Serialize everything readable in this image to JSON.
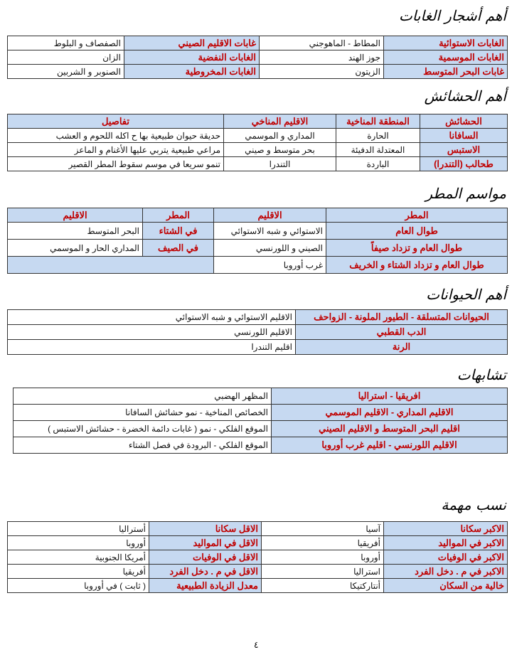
{
  "forests": {
    "title": "أهم أشجار الغابات",
    "rows": [
      [
        "الغابات الاستوائية",
        "المطاط - الماهوجني",
        "غابات الاقليم الصيني",
        "الصفصاف و البلوط"
      ],
      [
        "الغابات الموسمية",
        "جوز الهند",
        "الغابات النفضية",
        "الزان"
      ],
      [
        "غابات البحر المتوسط",
        "الزيتون",
        "الغابات المخروطية",
        "الصنوبر و الشربين"
      ]
    ]
  },
  "grasses": {
    "title": "أهم الحشائش",
    "header": [
      "الحشائش",
      "المنطقة المناخية",
      "الاقليم المناخي",
      "تفاصيل"
    ],
    "rows": [
      [
        "السافانا",
        "الحارة",
        "المداري و الموسمي",
        "حديقة حيوان طبيعية بها ح اكله اللحوم و العشب"
      ],
      [
        "الاستبس",
        "المعتدلة الدفيئة",
        "بحر متوسط و صيني",
        "مراعي طبيعية يتربي عليها الأغنام و الماعز"
      ],
      [
        "طحالب (التندرا)",
        "الباردة",
        "التندرا",
        "تنمو سريعا في موسم سقوط المطر القصير"
      ]
    ]
  },
  "rain": {
    "title": "مواسم المطر",
    "header": [
      "المطر",
      "الاقليم",
      "المطر",
      "الاقليم"
    ],
    "rows": [
      [
        "طوال العام",
        "الاستوائي و شبه الاستوائي",
        "في الشتاء",
        "البحر المتوسط"
      ],
      [
        "طوال العام و تزداد صيفاً",
        "الصيني و اللورنسي",
        "في الصيف",
        "المداري الحار و الموسمي"
      ],
      [
        "طوال العام و تزداد الشتاء و الخريف",
        "غرب أوروبا"
      ]
    ]
  },
  "animals": {
    "title": "أهم الحيوانات",
    "rows": [
      [
        "الحيوانات المتسلقة - الطيور الملونة - الزواحف",
        "الاقليم الاستوائي و شبه الاستوائي"
      ],
      [
        "الدب القطبي",
        "الاقليم اللورنسي"
      ],
      [
        "الرنة",
        "اقليم التندرا"
      ]
    ]
  },
  "similarities": {
    "title": "تشابهات",
    "rows": [
      [
        "افريقيا - استراليا",
        "المظهر الهضبي"
      ],
      [
        "الاقليم المداري - الاقليم الموسمي",
        "الخصائص المناخية - نمو حشائش السافانا"
      ],
      [
        "اقليم البحر المتوسط و الاقليم الصيني",
        "الموقع الفلكي - نمو  ( غابات دائمة الخضرة - حشائش الاستبس )"
      ],
      [
        "الاقليم اللورنسي - اقليم غرب أوروبا",
        "الموقع الفلكي - البرودة في فصل الشتاء"
      ]
    ]
  },
  "stats": {
    "title": "نسب مهمة",
    "rows": [
      [
        "الاكبر سكانا",
        "آسيا",
        "الاقل سكانا",
        "أستراليا"
      ],
      [
        "الاكبر في المواليد",
        "أفريقيا",
        "الاقل في المواليد",
        "أوروبا"
      ],
      [
        "الاكبر في الوفيات",
        "أوروبا",
        "الاقل في الوفيات",
        "أمريكا الجنوبية"
      ],
      [
        "الاكبر في م . دخل الفرد",
        "استراليا",
        "الاقل في م . دخل الفرد",
        "أفريقيا"
      ],
      [
        "خالية من السكان",
        "أنتاركتيكا",
        "معدل الزيادة الطبيعية",
        "( ثابت )  في أوروبا"
      ]
    ]
  },
  "page_number": "٤",
  "colors": {
    "label_bg": "#c6d9f1",
    "label_text": "#c00000"
  }
}
